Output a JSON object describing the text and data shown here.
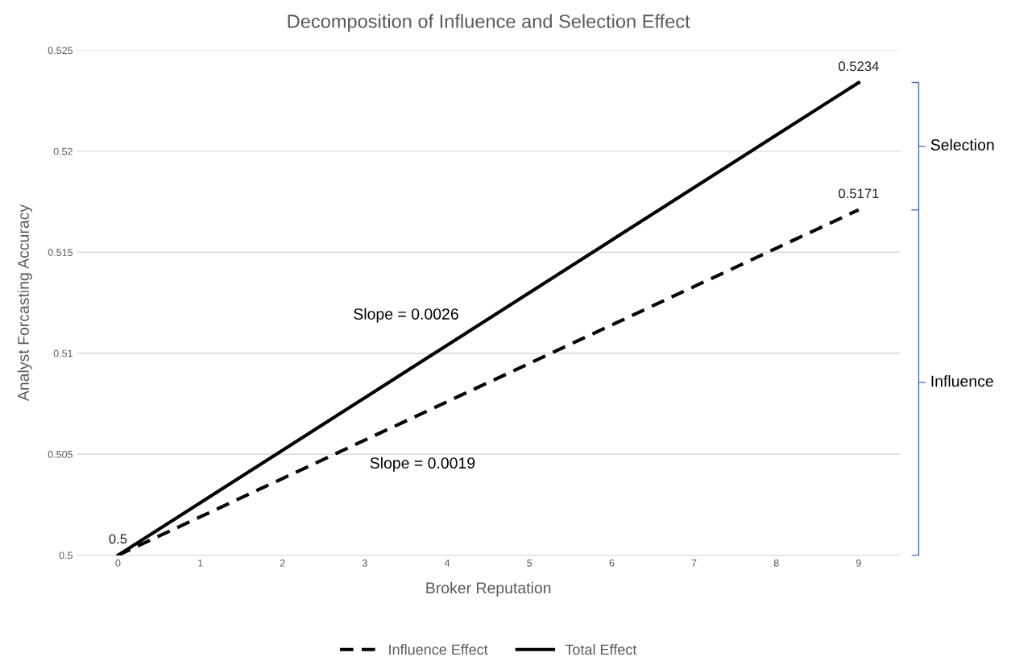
{
  "chart_data": {
    "type": "line",
    "title": "Decomposition of Influence and Selection Effect",
    "xlabel": "Broker Reputation",
    "ylabel": "Analyst Forcasting Accuracy",
    "categories": [
      "0",
      "1",
      "2",
      "3",
      "4",
      "5",
      "6",
      "7",
      "8",
      "9"
    ],
    "series": [
      {
        "name": "Influence Effect",
        "color": "#000000",
        "line_style": "dashed",
        "values": [
          0.5,
          0.5019,
          0.5038,
          0.5057,
          0.5076,
          0.5095,
          0.5114,
          0.5133,
          0.5152,
          0.5171
        ],
        "value_labels": [
          null,
          null,
          null,
          null,
          null,
          null,
          null,
          null,
          null,
          "0.5171"
        ]
      },
      {
        "name": "Total Effect",
        "color": "#000000",
        "line_style": "solid",
        "values": [
          0.5,
          0.5026,
          0.5052,
          0.5078,
          0.5104,
          0.513,
          0.5156,
          0.5182,
          0.5208,
          0.5234
        ],
        "value_labels": [
          "0.5",
          null,
          null,
          null,
          null,
          null,
          null,
          null,
          null,
          "0.5234"
        ]
      }
    ],
    "ylim": [
      0.5,
      0.525
    ],
    "yticks": [
      0.5,
      0.505,
      0.51,
      0.515,
      0.52,
      0.525
    ],
    "grid": "y",
    "legend": "bottom",
    "marker": "none",
    "annotations": [
      "Slope = 0.0026",
      "Slope = 0.0019",
      "Selection",
      "Influence"
    ]
  }
}
